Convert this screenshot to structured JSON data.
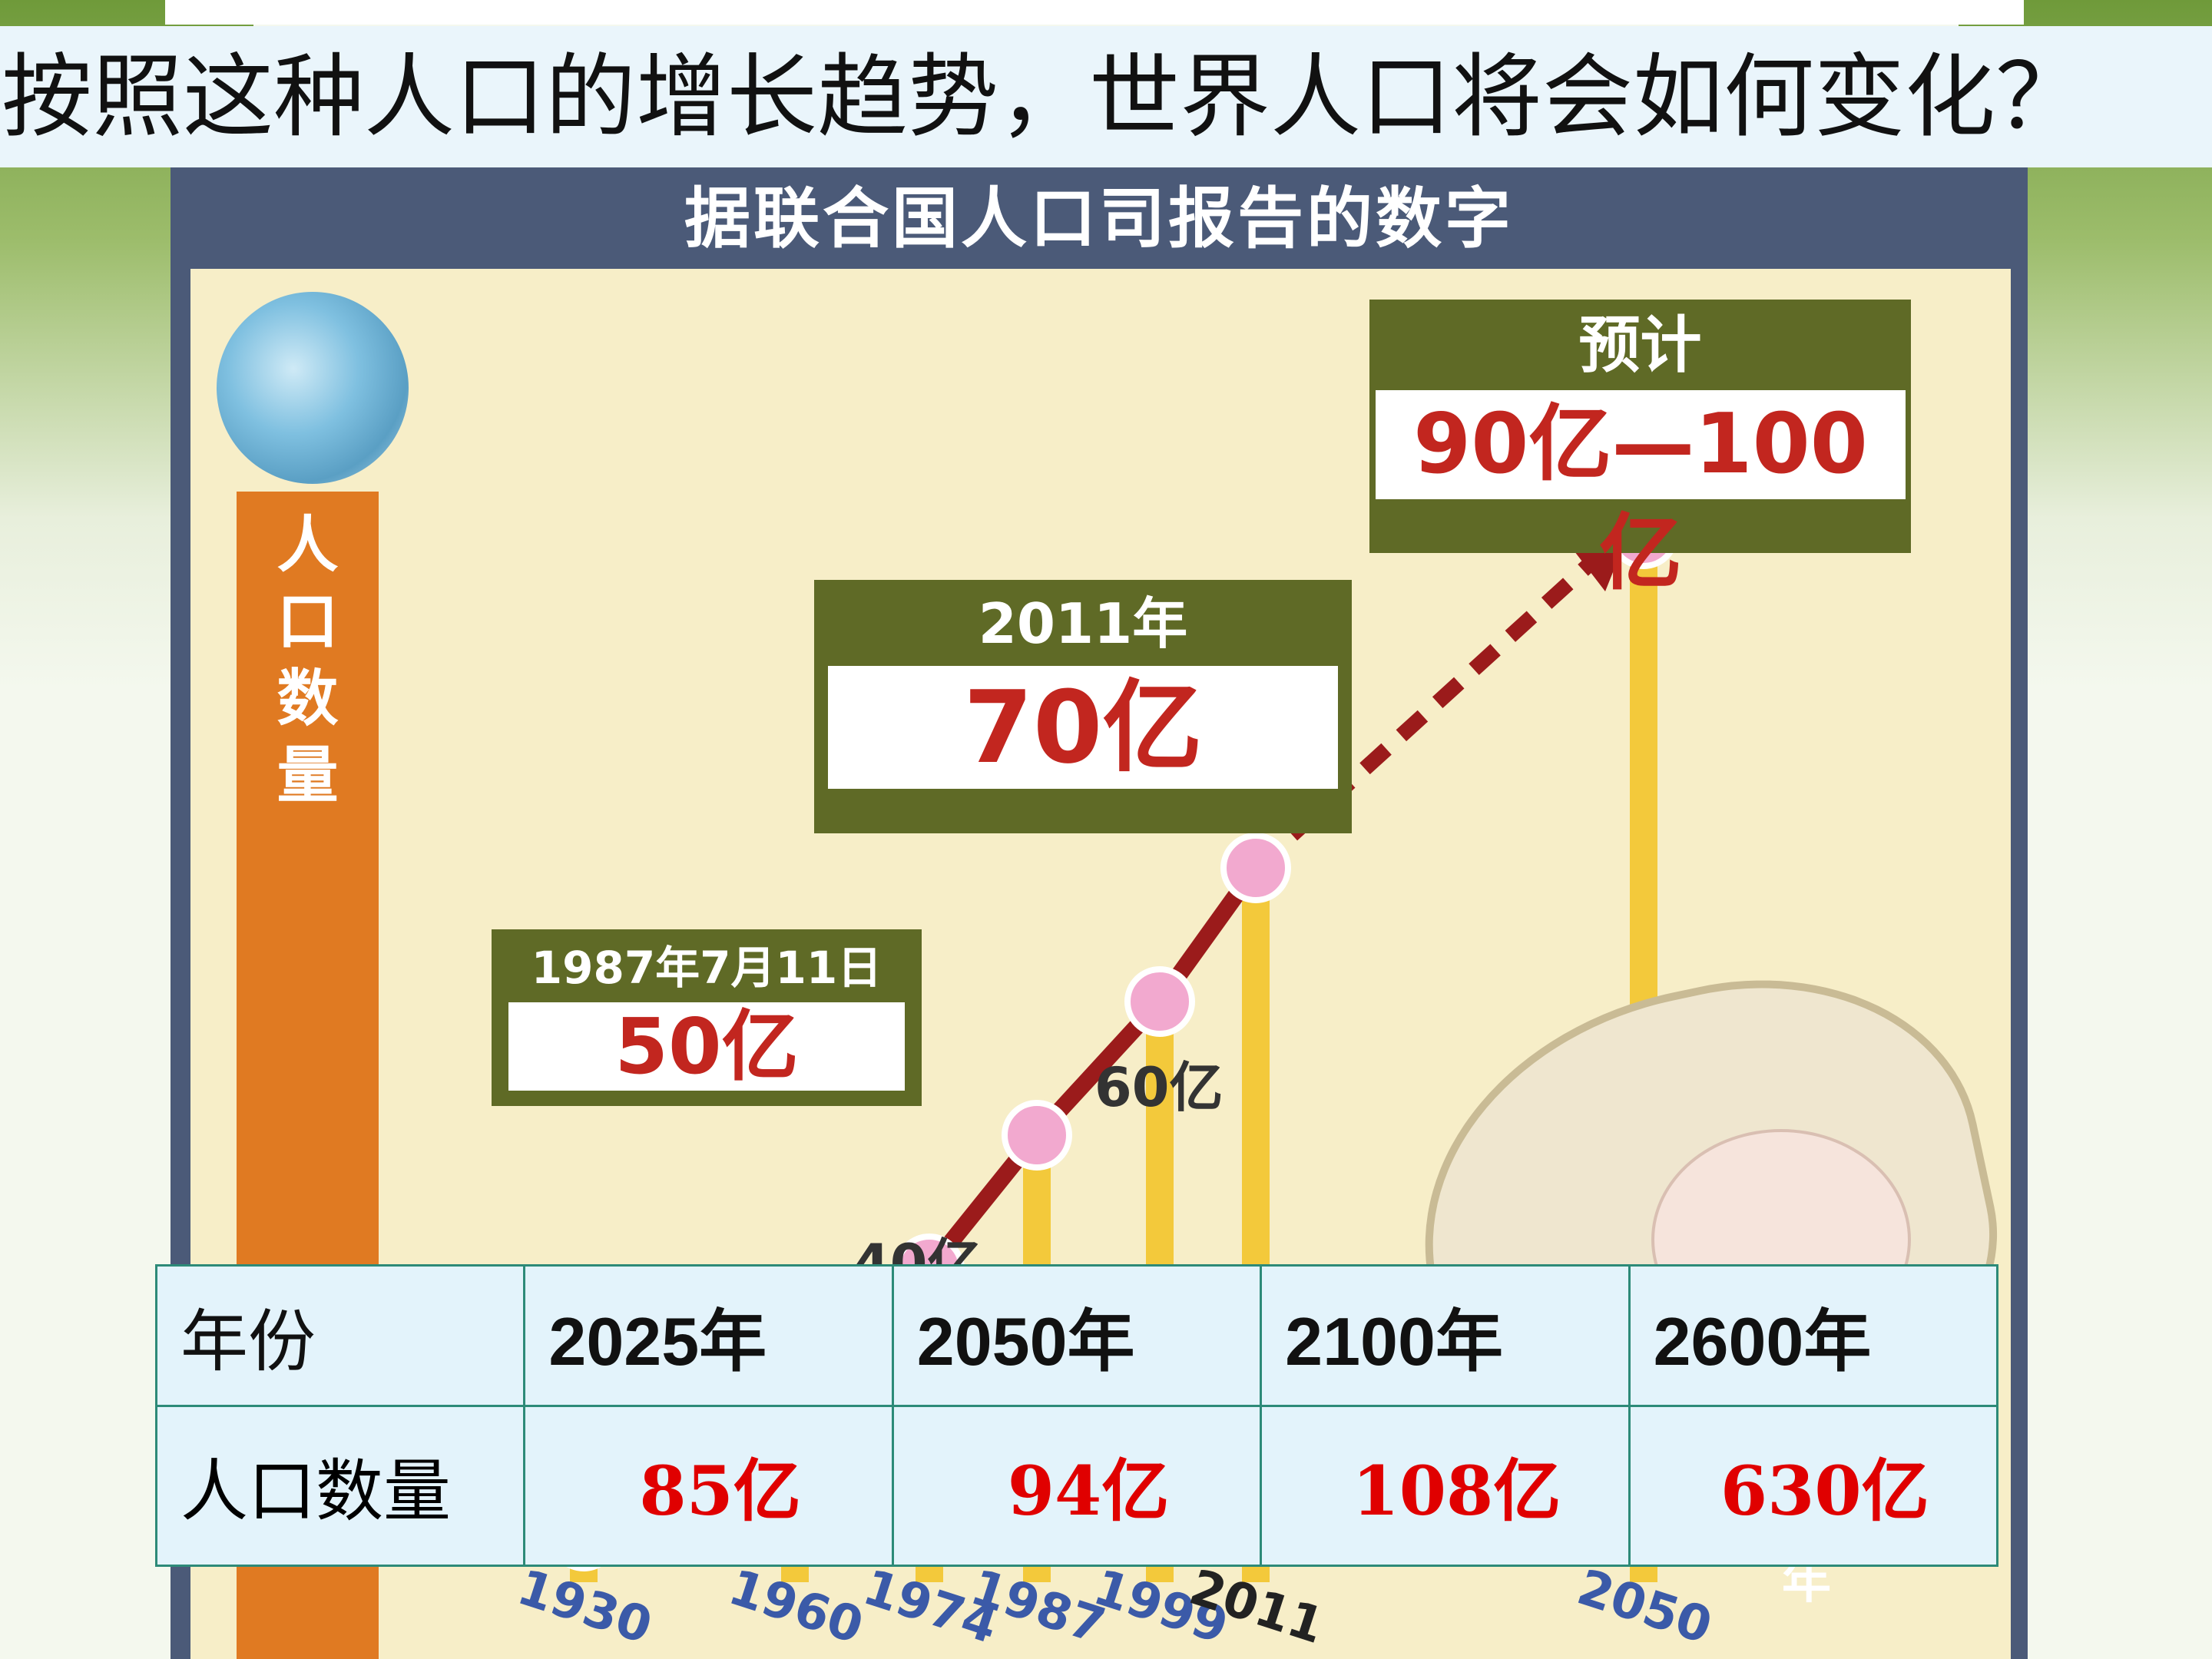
{
  "question": "按照这种人口的增长趋势，世界人口将会如何变化？",
  "figure": {
    "title": "据联合国人口司报告的数字",
    "y_label": "人口数量",
    "callouts": [
      {
        "head": "1987年7月11日",
        "value": "50亿"
      },
      {
        "head": "2011年",
        "value": "70亿"
      },
      {
        "head": "预计",
        "value": "90亿—100亿"
      }
    ],
    "point_labels": [
      "60亿",
      "40亿"
    ],
    "x_years": [
      "1930",
      "1960",
      "1974",
      "1987",
      "1999",
      "2011",
      "2050"
    ],
    "x_axis_end": "年"
  },
  "chart_data": {
    "type": "line",
    "title": "据联合国人口司报告的数字",
    "ylabel": "人口数量",
    "xlabel": "年",
    "x": [
      "1930",
      "1960",
      "1974",
      "1987",
      "1999",
      "2011",
      "2050"
    ],
    "series": [
      {
        "values": [
          20,
          30,
          40,
          50,
          60,
          70,
          95
        ]
      }
    ],
    "annotations": [
      "1987年7月11日 50亿",
      "2011年 70亿",
      "预计 90亿—100亿",
      "60亿",
      "40亿"
    ]
  },
  "table": {
    "header": [
      "年份",
      "2025年",
      "2050年",
      "2100年",
      "2600年"
    ],
    "row": [
      "人口数量",
      "85亿",
      "94亿",
      "108亿",
      "630亿"
    ]
  },
  "colors": {
    "accent_orange": "#e07a22",
    "data_red": "#e00000",
    "callout_olive": "#5f6a26",
    "point_pink": "#f2a9cf",
    "trend_red": "#9b1b1b"
  }
}
